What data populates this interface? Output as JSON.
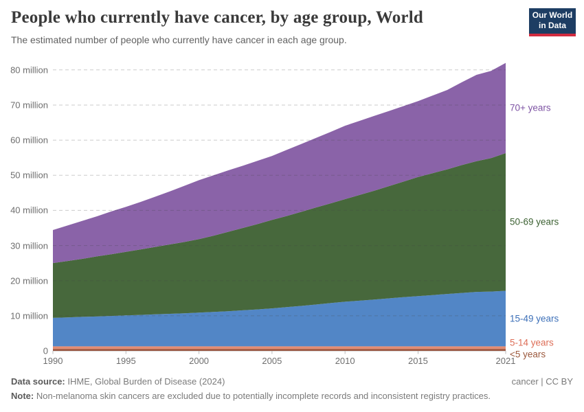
{
  "header": {
    "title": "People who currently have cancer, by age group, World",
    "subtitle": "The estimated number of people who currently have cancer in each age group.",
    "logo": {
      "line1": "Our World",
      "line2": "in Data",
      "bg_color": "#1d3d63",
      "accent_color": "#d12b3f"
    }
  },
  "chart_data": {
    "type": "area",
    "stacked": true,
    "title": "People who currently have cancer, by age group, World",
    "unit": "million",
    "x": [
      1990,
      1991,
      1992,
      1993,
      1994,
      1995,
      1996,
      1997,
      1998,
      1999,
      2000,
      2001,
      2002,
      2003,
      2004,
      2005,
      2006,
      2007,
      2008,
      2009,
      2010,
      2011,
      2012,
      2013,
      2014,
      2015,
      2016,
      2017,
      2018,
      2019,
      2020,
      2021
    ],
    "series": [
      {
        "name": "<5 years",
        "color": "#a8604a",
        "label_color": "#9c5a3e",
        "values": [
          0.65,
          0.65,
          0.65,
          0.65,
          0.65,
          0.65,
          0.65,
          0.65,
          0.65,
          0.65,
          0.65,
          0.65,
          0.65,
          0.65,
          0.65,
          0.65,
          0.65,
          0.65,
          0.65,
          0.65,
          0.65,
          0.65,
          0.65,
          0.65,
          0.65,
          0.65,
          0.65,
          0.65,
          0.65,
          0.65,
          0.65,
          0.65
        ]
      },
      {
        "name": "5-14 years",
        "color": "#e58b70",
        "label_color": "#dd6e57",
        "values": [
          0.65,
          0.65,
          0.65,
          0.65,
          0.65,
          0.65,
          0.65,
          0.65,
          0.65,
          0.65,
          0.65,
          0.65,
          0.65,
          0.65,
          0.65,
          0.65,
          0.65,
          0.65,
          0.65,
          0.65,
          0.65,
          0.65,
          0.65,
          0.65,
          0.65,
          0.65,
          0.65,
          0.65,
          0.65,
          0.65,
          0.65,
          0.65
        ]
      },
      {
        "name": "15-49 years",
        "color": "#5286c6",
        "label_color": "#3d70b8",
        "values": [
          8.1,
          8.25,
          8.4,
          8.5,
          8.65,
          8.8,
          8.95,
          9.1,
          9.25,
          9.4,
          9.6,
          9.8,
          10.0,
          10.25,
          10.5,
          10.8,
          11.15,
          11.5,
          11.9,
          12.3,
          12.7,
          13.0,
          13.3,
          13.65,
          14.0,
          14.3,
          14.6,
          14.9,
          15.2,
          15.5,
          15.6,
          15.8
        ]
      },
      {
        "name": "50-69 years",
        "color": "#47683c",
        "label_color": "#3c6132",
        "values": [
          15.6,
          16.05,
          16.5,
          17.1,
          17.55,
          18.1,
          18.65,
          19.2,
          19.75,
          20.3,
          20.9,
          21.7,
          22.6,
          23.45,
          24.3,
          25.2,
          25.95,
          26.8,
          27.6,
          28.4,
          29.2,
          30.1,
          31.0,
          31.95,
          32.9,
          33.9,
          34.7,
          35.5,
          36.4,
          37.2,
          38.0,
          39.2
        ]
      },
      {
        "name": "70+ years",
        "color": "#8a63a8",
        "label_color": "#7e54a4",
        "values": [
          9.4,
          10.1,
          10.8,
          11.4,
          12.2,
          12.8,
          13.5,
          14.3,
          15.1,
          16.0,
          16.8,
          17.2,
          17.5,
          17.7,
          18.0,
          18.2,
          18.8,
          19.3,
          19.8,
          20.3,
          20.9,
          21.1,
          21.3,
          21.4,
          21.5,
          21.6,
          22.1,
          22.6,
          23.6,
          24.6,
          24.8,
          25.7
        ]
      }
    ],
    "xlim": [
      1990,
      2021
    ],
    "ylim": [
      0,
      82.7
    ],
    "y_ticks": {
      "values": [
        0,
        10,
        20,
        30,
        40,
        50,
        60,
        70,
        80
      ],
      "labels": [
        "0",
        "10 million",
        "20 million",
        "30 million",
        "40 million",
        "50 million",
        "60 million",
        "70 million",
        "80 million"
      ]
    },
    "x_ticks": {
      "values": [
        1990,
        1995,
        2000,
        2005,
        2010,
        2015,
        2021
      ],
      "labels": [
        "1990",
        "1995",
        "2000",
        "2005",
        "2010",
        "2015",
        "2021"
      ]
    },
    "legend_position": "right",
    "grid": "dashed-horizontal"
  },
  "footer": {
    "source_label": "Data source:",
    "source_text": "IHME, Global Burden of Disease (2024)",
    "license": "cancer | CC BY",
    "note_label": "Note:",
    "note_text": "Non-melanoma skin cancers are excluded due to potentially incomplete records and inconsistent registry practices."
  }
}
